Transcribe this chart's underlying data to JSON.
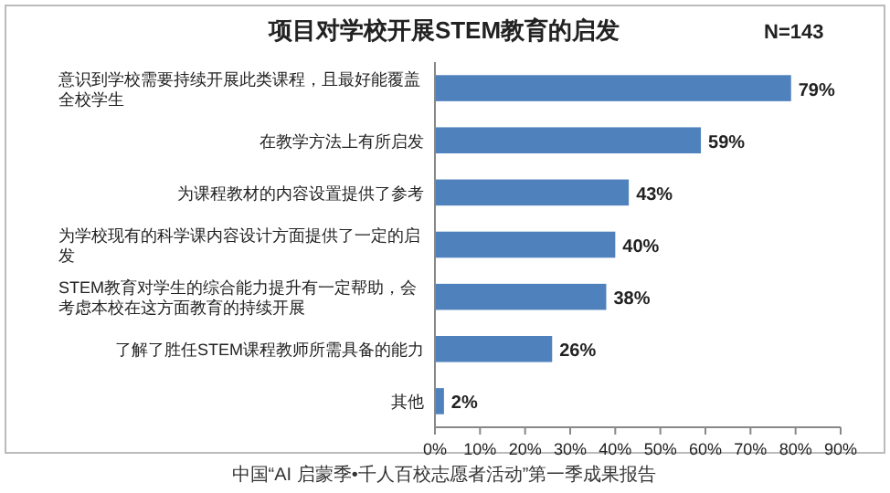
{
  "chart_data": {
    "type": "bar",
    "orientation": "horizontal",
    "title": "项目对学校开展STEM教育的启发",
    "categories": [
      "意识到学校需要持续开展此类课程，且最好能覆盖全校学生",
      "在教学方法上有所启发",
      "为课程教材的内容设置提供了参考",
      "为学校现有的科学课内容设计方面提供了一定的启发",
      "STEM教育对学生的综合能力提升有一定帮助，会考虑本校在这方面教育的持续开展",
      "了解了胜任STEM课程教师所需具备的能力",
      "其他"
    ],
    "values": [
      79,
      59,
      43,
      40,
      38,
      26,
      2
    ],
    "value_labels": [
      "79%",
      "59%",
      "43%",
      "40%",
      "38%",
      "26%",
      "2%"
    ],
    "color": "#4f81bd",
    "xlim": [
      0,
      90
    ],
    "xticks": [
      {
        "value": 0,
        "label": "0%"
      },
      {
        "value": 10,
        "label": "10%"
      },
      {
        "value": 20,
        "label": "20%"
      },
      {
        "value": 30,
        "label": "30%"
      },
      {
        "value": 40,
        "label": "40%"
      },
      {
        "value": 50,
        "label": "50%"
      },
      {
        "value": 60,
        "label": "60%"
      },
      {
        "value": 70,
        "label": "70%"
      },
      {
        "value": 80,
        "label": "80%"
      },
      {
        "value": 90,
        "label": "90%"
      }
    ],
    "annotations": [
      "N=143",
      "中国“AI 启蒙季•千人百校志愿者活动”第一季成果报告"
    ]
  }
}
